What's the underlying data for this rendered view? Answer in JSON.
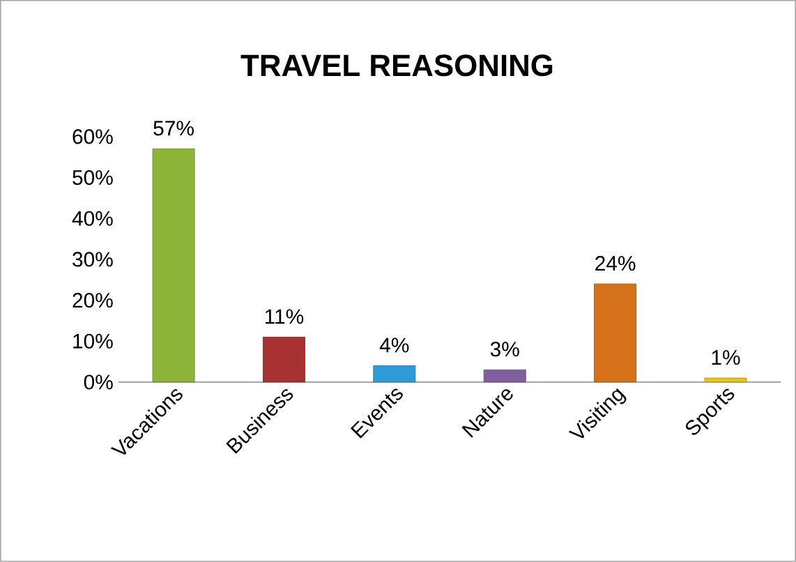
{
  "chart_data": {
    "type": "bar",
    "title": "TRAVEL REASONING",
    "categories": [
      "Vacations",
      "Business",
      "Events",
      "Nature",
      "Visiting",
      "Sports"
    ],
    "values": [
      57,
      11,
      4,
      3,
      24,
      1
    ],
    "colors": [
      "#8db53a",
      "#a83232",
      "#2e9bd6",
      "#7f5fa0",
      "#d5701b",
      "#e6c619"
    ],
    "value_labels": [
      "57%",
      "11%",
      "4%",
      "3%",
      "24%",
      "1%"
    ],
    "ylim": [
      0,
      60
    ],
    "yticks": [
      {
        "value": 0,
        "label": "0%"
      },
      {
        "value": 10,
        "label": "10%"
      },
      {
        "value": 20,
        "label": "20%"
      },
      {
        "value": 30,
        "label": "30%"
      },
      {
        "value": 40,
        "label": "40%"
      },
      {
        "value": 50,
        "label": "50%"
      },
      {
        "value": 60,
        "label": "60%"
      }
    ],
    "grid": false
  }
}
